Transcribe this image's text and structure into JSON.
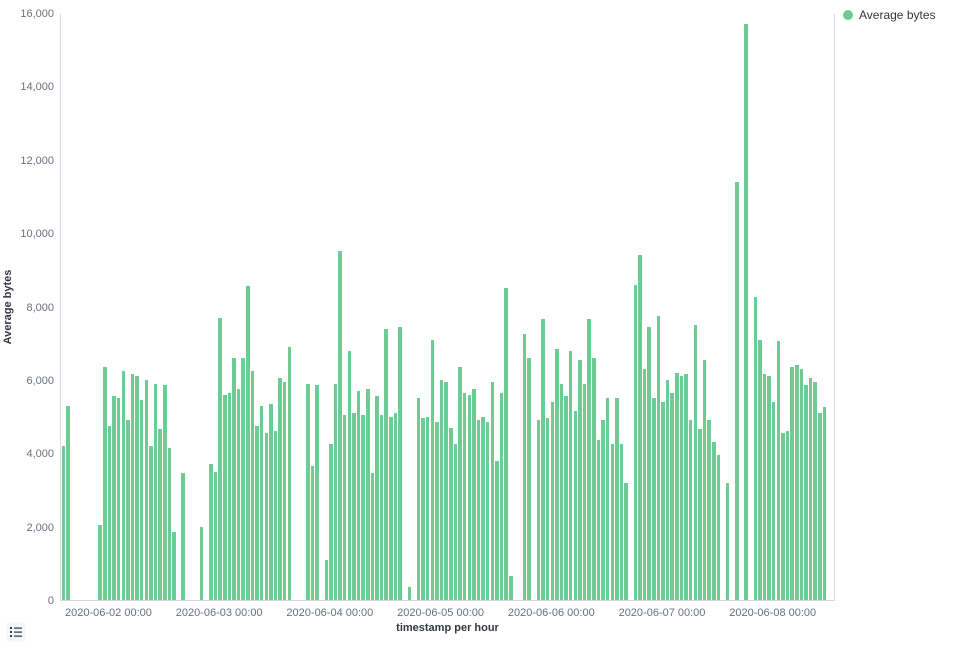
{
  "legend": {
    "label": "Average bytes",
    "color": "#6DCC93"
  },
  "controls": {
    "legend_toggle_icon": "list-icon"
  },
  "chart_data": {
    "type": "bar",
    "title": "",
    "xlabel": "timestamp per hour",
    "ylabel": "Average bytes",
    "ylim": [
      0,
      16000
    ],
    "grid": false,
    "legend_position": "top-right",
    "bar_color": "#6DCC93",
    "series_name": "Average bytes",
    "y_ticks": [
      {
        "value": 0,
        "label": "0"
      },
      {
        "value": 2000,
        "label": "2,000"
      },
      {
        "value": 4000,
        "label": "4,000"
      },
      {
        "value": 6000,
        "label": "6,000"
      },
      {
        "value": 8000,
        "label": "8,000"
      },
      {
        "value": 10000,
        "label": "10,000"
      },
      {
        "value": 12000,
        "label": "12,000"
      },
      {
        "value": 14000,
        "label": "14,000"
      },
      {
        "value": 16000,
        "label": "16,000"
      }
    ],
    "x_ticks": [
      {
        "index": 10,
        "label": "2020-06-02 00:00"
      },
      {
        "index": 34,
        "label": "2020-06-03 00:00"
      },
      {
        "index": 58,
        "label": "2020-06-04 00:00"
      },
      {
        "index": 82,
        "label": "2020-06-05 00:00"
      },
      {
        "index": 106,
        "label": "2020-06-06 00:00"
      },
      {
        "index": 130,
        "label": "2020-06-07 00:00"
      },
      {
        "index": 154,
        "label": "2020-06-08 00:00"
      }
    ],
    "values": [
      4200,
      5300,
      null,
      null,
      null,
      null,
      null,
      null,
      2050,
      6350,
      4750,
      5550,
      5500,
      6250,
      4900,
      6150,
      6100,
      5450,
      6000,
      4200,
      5900,
      4650,
      5850,
      4150,
      1850,
      null,
      3450,
      null,
      null,
      null,
      2000,
      null,
      3700,
      3500,
      7700,
      5600,
      5650,
      6600,
      5750,
      6600,
      8550,
      6250,
      4750,
      5300,
      4550,
      5350,
      4600,
      6050,
      5950,
      6900,
      null,
      null,
      null,
      5900,
      3650,
      5850,
      null,
      1100,
      4250,
      5900,
      9500,
      5050,
      6800,
      5100,
      5700,
      5050,
      5750,
      3450,
      5550,
      5050,
      7400,
      5000,
      5100,
      7450,
      null,
      350,
      null,
      5500,
      4950,
      5000,
      7100,
      4850,
      6000,
      5950,
      4700,
      4250,
      6350,
      5650,
      5600,
      5750,
      4900,
      5000,
      4850,
      5950,
      3800,
      5650,
      8500,
      650,
      null,
      null,
      7250,
      6600,
      null,
      4900,
      7650,
      4950,
      5400,
      6850,
      5900,
      5550,
      6800,
      5150,
      6550,
      5900,
      7650,
      6600,
      4350,
      4900,
      5500,
      4250,
      5500,
      4250,
      3200,
      null,
      8600,
      9400,
      6300,
      7450,
      5500,
      7750,
      5400,
      6000,
      5650,
      6200,
      6100,
      6150,
      4900,
      7500,
      4650,
      6550,
      4900,
      4300,
      3950,
      null,
      3200,
      null,
      11400,
      null,
      15700,
      null,
      8250,
      7100,
      6150,
      6100,
      5400,
      7050,
      4550,
      4600,
      6350,
      6400,
      6300,
      5850,
      6050,
      5950,
      5100,
      5250,
      null,
      null
    ]
  }
}
